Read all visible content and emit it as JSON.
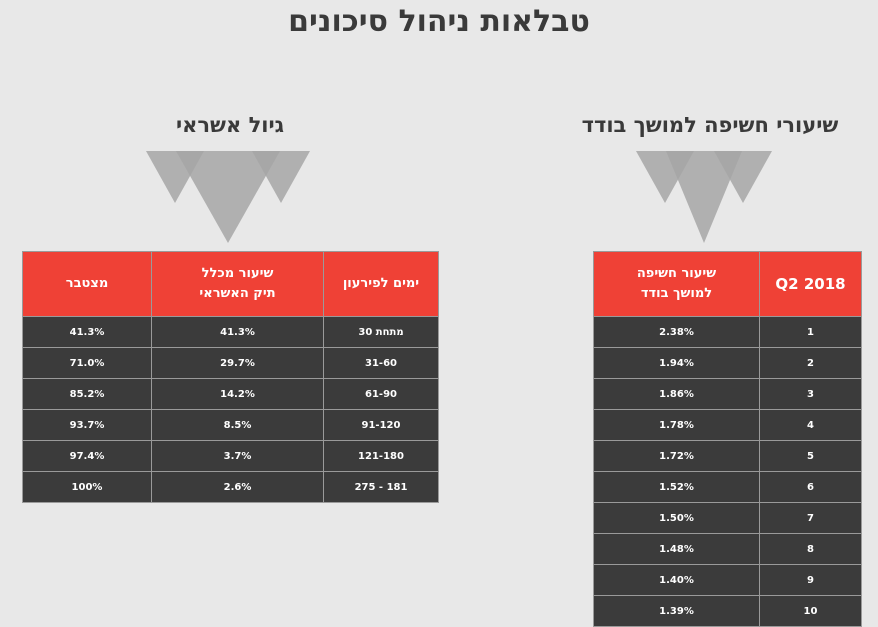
{
  "page": {
    "title": "טבלאות ניהול סיכונים"
  },
  "credit_aging": {
    "title": "גיול אשראי",
    "headers": {
      "days": "ימים לפירעון",
      "rate_line1": "שיעור מכלל",
      "rate_line2": "תיק האשראי",
      "cumulative": "מצטבר"
    },
    "rows": [
      {
        "days": "מתחת 30",
        "rate": "41.3%",
        "cumulative": "41.3%"
      },
      {
        "days": "31-60",
        "rate": "29.7%",
        "cumulative": "71.0%"
      },
      {
        "days": "61-90",
        "rate": "14.2%",
        "cumulative": "85.2%"
      },
      {
        "days": "91-120",
        "rate": "8.5%",
        "cumulative": "93.7%"
      },
      {
        "days": "121-180",
        "rate": "3.7%",
        "cumulative": "97.4%"
      },
      {
        "days": "181 - 275",
        "rate": "2.6%",
        "cumulative": "100%"
      }
    ]
  },
  "pd_rates": {
    "title": "שיעורי חשיפה למושך בודד",
    "headers": {
      "quarter": "Q2 2018",
      "rate_line1": "שיעור חשיפה",
      "rate_line2": "למושך בודד"
    },
    "rows": [
      {
        "rank": "1",
        "rate": "2.38%"
      },
      {
        "rank": "2",
        "rate": "1.94%"
      },
      {
        "rank": "3",
        "rate": "1.86%"
      },
      {
        "rank": "4",
        "rate": "1.78%"
      },
      {
        "rank": "5",
        "rate": "1.72%"
      },
      {
        "rank": "6",
        "rate": "1.52%"
      },
      {
        "rank": "7",
        "rate": "1.50%"
      },
      {
        "rank": "8",
        "rate": "1.48%"
      },
      {
        "rank": "9",
        "rate": "1.40%"
      },
      {
        "rank": "10",
        "rate": "1.39%"
      }
    ]
  },
  "colors": {
    "header_red": "#ef4136",
    "cell_dark": "#3b3b3b",
    "background": "#e8e8e8",
    "triangle_gray": "#a6a6a6"
  }
}
